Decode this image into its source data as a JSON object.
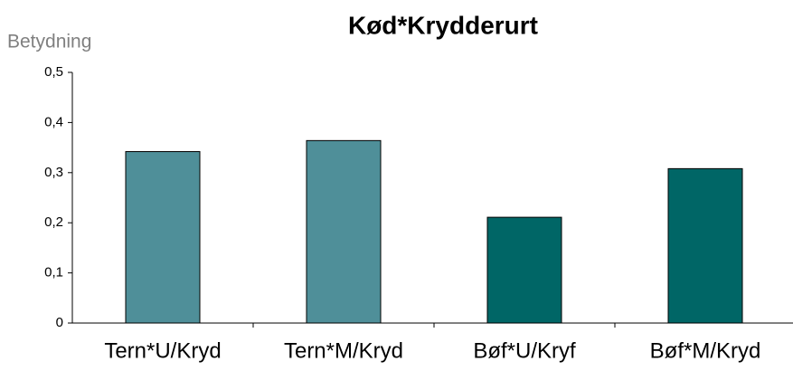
{
  "chart_data": {
    "type": "bar",
    "title": "Kød*Krydderurt",
    "y_label": "Betydning",
    "categories": [
      "Tern*U/Kryd",
      "Tern*M/Kryd",
      "Bøf*U/Kryf",
      "Bøf*M/Kryd"
    ],
    "values": [
      0.342,
      0.364,
      0.211,
      0.308
    ],
    "colors": [
      "#4f8f99",
      "#4f8f99",
      "#006666",
      "#006666"
    ],
    "ylim": [
      0,
      0.5
    ],
    "yticks": [
      0,
      {
        "value": 0.1,
        "label": "0,1"
      },
      {
        "value": 0.2,
        "label": "0,2"
      },
      {
        "value": 0.3,
        "label": "0,3"
      },
      {
        "value": 0.4,
        "label": "0,4"
      },
      {
        "value": 0.5,
        "label": "0,5"
      }
    ],
    "grid": false
  }
}
